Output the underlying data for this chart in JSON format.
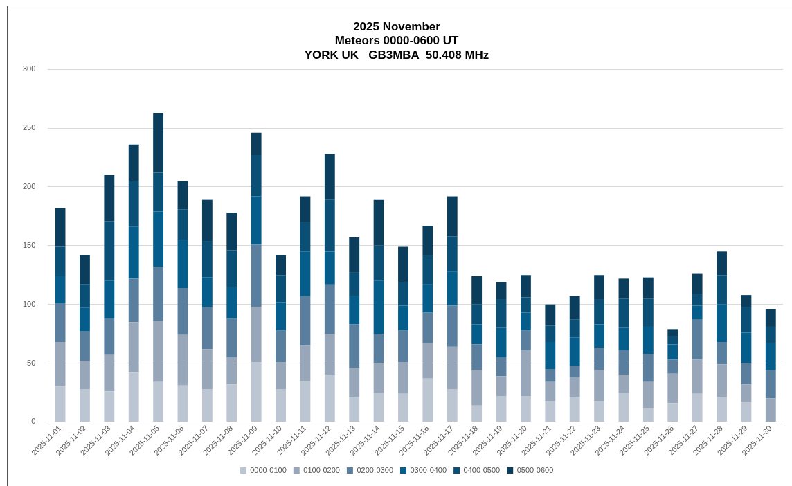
{
  "chart_data": {
    "type": "bar",
    "stacked": true,
    "title": "2025 November\nMeteors 0000-0600 UT\nYORK UK   GB3MBA  50.408 MHz",
    "categories": [
      "2025-11-01",
      "2025-11-02",
      "2025-11-03",
      "2025-11-04",
      "2025-11-05",
      "2025-11-06",
      "2025-11-07",
      "2025-11-08",
      "2025-11-09",
      "2025-11-10",
      "2025-11-11",
      "2025-11-12",
      "2025-11-13",
      "2025-11-14",
      "2025-11-15",
      "2025-11-16",
      "2025-11-17",
      "2025-11-18",
      "2025-11-19",
      "2025-11-20",
      "2025-11-21",
      "2025-11-22",
      "2025-11-23",
      "2025-11-24",
      "2025-11-25",
      "2025-11-26",
      "2025-11-27",
      "2025-11-28",
      "2025-11-29",
      "2025-11-30"
    ],
    "series": [
      {
        "name": "0000-0100",
        "color": "#bcc6d2",
        "values": [
          30,
          28,
          26,
          42,
          34,
          31,
          28,
          32,
          51,
          28,
          35,
          40,
          21,
          25,
          24,
          37,
          28,
          14,
          22,
          22,
          18,
          21,
          18,
          25,
          12,
          16,
          24,
          21,
          17,
          0
        ]
      },
      {
        "name": "0100-0200",
        "color": "#97a6b8",
        "values": [
          38,
          24,
          31,
          43,
          52,
          43,
          34,
          23,
          47,
          23,
          30,
          35,
          25,
          25,
          27,
          30,
          36,
          30,
          17,
          39,
          16,
          17,
          26,
          15,
          22,
          25,
          29,
          28,
          15,
          20
        ]
      },
      {
        "name": "0200-0300",
        "color": "#5a7f9e",
        "values": [
          33,
          25,
          31,
          37,
          46,
          40,
          36,
          33,
          53,
          27,
          42,
          42,
          37,
          25,
          27,
          26,
          35,
          22,
          16,
          17,
          11,
          10,
          19,
          21,
          24,
          12,
          34,
          19,
          18,
          24
        ]
      },
      {
        "name": "0300-0400",
        "color": "#045d8a",
        "values": [
          23,
          20,
          32,
          44,
          47,
          41,
          25,
          27,
          41,
          24,
          38,
          28,
          24,
          45,
          21,
          24,
          29,
          17,
          25,
          15,
          23,
          24,
          20,
          19,
          23,
          13,
          12,
          32,
          26,
          23
        ]
      },
      {
        "name": "0400-0500",
        "color": "#0a4f75",
        "values": [
          25,
          20,
          51,
          39,
          33,
          26,
          31,
          31,
          35,
          23,
          25,
          44,
          20,
          30,
          20,
          25,
          30,
          17,
          24,
          13,
          14,
          15,
          21,
          25,
          24,
          7,
          10,
          25,
          22,
          14
        ]
      },
      {
        "name": "0500-0600",
        "color": "#0b3d5c",
        "values": [
          33,
          25,
          39,
          31,
          51,
          24,
          35,
          32,
          19,
          17,
          22,
          39,
          30,
          39,
          30,
          25,
          34,
          24,
          15,
          19,
          18,
          20,
          21,
          17,
          18,
          6,
          17,
          20,
          10,
          15
        ]
      }
    ],
    "ylim": [
      0,
      300
    ],
    "yticks": [
      0,
      50,
      100,
      150,
      200,
      250,
      300
    ],
    "grid": "y",
    "legend": "bottom"
  }
}
